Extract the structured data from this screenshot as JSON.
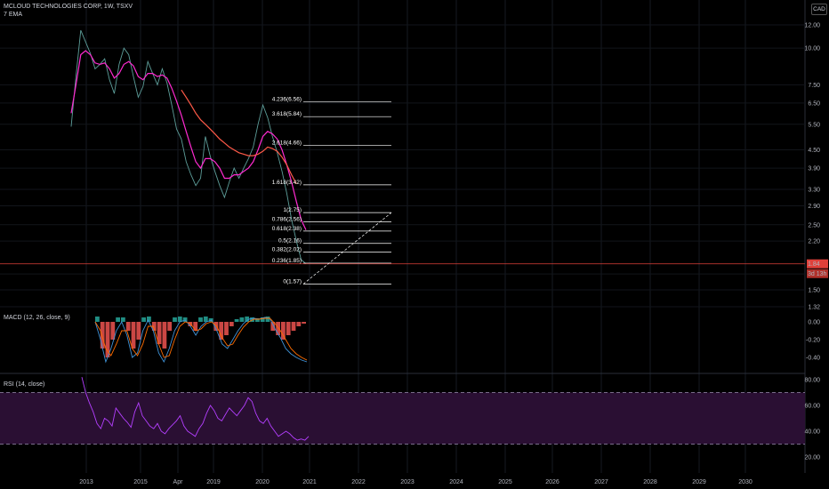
{
  "header": {
    "symbol_line": "MCLOUD TECHNOLOGIES CORP, 1W, TSXV",
    "indicator": "7 EMA",
    "currency": "CAD"
  },
  "macd_label": "MACD (12, 26, close, 9)",
  "rsi_label": "RSI (14, close)",
  "colors": {
    "background": "#000000",
    "price_line": "#5d9e9a",
    "ema": "#ff2ad1",
    "ma_slow": "#ff5a48",
    "fib": "#ffffff",
    "current_price": "#e0403a",
    "macd_hist_up": "#26a69a",
    "macd_hist_down": "#ef5350",
    "macd_line": "#3f92d6",
    "signal_line": "#ff6d00",
    "rsi_line": "#b43fff",
    "rsi_band": "#2a0f33"
  },
  "chart_data": [
    {
      "type": "line",
      "title": "MCLOUD TECHNOLOGIES CORP, 1W, TSXV",
      "x_ticks": [
        "2013",
        "2015",
        "Apr",
        "2019",
        "2020",
        "2021",
        "2022",
        "2023",
        "2024",
        "2025",
        "2026",
        "2027",
        "2028",
        "2029",
        "2030"
      ],
      "y_scale": "log",
      "y_ticks": [
        12.0,
        10.0,
        7.5,
        6.5,
        5.5,
        4.5,
        3.9,
        3.3,
        2.9,
        2.5,
        2.2,
        1.7,
        1.5,
        1.32
      ],
      "y_tick_labels": [
        "12.00",
        "10.00",
        "7.50",
        "6.50",
        "5.50",
        "4.50",
        "3.90",
        "3.30",
        "2.90",
        "2.50",
        "2.20",
        "1.70",
        "1.50",
        "1.32"
      ],
      "current_price": 1.84,
      "current_price_label": "1.84",
      "countdown_label": "3d 13h",
      "series": [
        {
          "values": [
            5.4,
            8.0,
            11.5,
            10.5,
            9.6,
            8.5,
            8.8,
            9.2,
            7.8,
            7.0,
            8.8,
            10.0,
            9.5,
            8.0,
            6.8,
            7.4,
            9.0,
            8.2,
            7.5,
            8.5,
            7.6,
            6.4,
            5.3,
            4.9,
            4.1,
            3.7,
            3.4,
            3.6,
            5.0,
            4.3,
            3.8,
            3.4,
            3.1,
            3.5,
            3.9,
            3.6,
            3.9,
            4.2,
            4.6,
            5.5,
            6.4,
            5.8,
            5.0,
            4.4,
            3.8,
            3.2,
            2.6,
            2.2,
            1.9,
            1.84
          ]
        },
        {
          "values": [
            6.0,
            7.5,
            9.5,
            9.8,
            9.5,
            8.9,
            8.8,
            8.9,
            8.5,
            7.9,
            8.2,
            8.8,
            9.0,
            8.7,
            8.0,
            7.8,
            8.2,
            8.2,
            8.0,
            8.1,
            7.9,
            7.3,
            6.6,
            5.9,
            5.2,
            4.6,
            4.1,
            3.9,
            4.2,
            4.2,
            4.1,
            3.9,
            3.6,
            3.6,
            3.7,
            3.7,
            3.8,
            3.9,
            4.1,
            4.5,
            5.0,
            5.2,
            5.1,
            4.9,
            4.5,
            4.0,
            3.5,
            3.0,
            2.6,
            2.4
          ]
        },
        {
          "values": [
            null,
            null,
            null,
            null,
            null,
            null,
            null,
            null,
            null,
            null,
            null,
            null,
            null,
            null,
            null,
            null,
            null,
            null,
            null,
            null,
            null,
            null,
            null,
            7.2,
            6.8,
            6.4,
            6.0,
            5.7,
            5.5,
            5.3,
            5.1,
            4.9,
            4.75,
            4.6,
            4.5,
            4.4,
            4.35,
            4.3,
            4.3,
            4.35,
            4.45,
            4.6,
            4.55,
            4.45,
            4.25,
            4.0,
            3.7,
            3.45,
            null,
            null
          ]
        }
      ],
      "fib_levels": [
        {
          "label": "4.236(6.56)",
          "value": 6.56
        },
        {
          "label": "3.618(5.84)",
          "value": 5.84
        },
        {
          "label": "2.618(4.66)",
          "value": 4.66
        },
        {
          "label": "1.618(3.42)",
          "value": 3.42
        },
        {
          "label": "1(2.75)",
          "value": 2.75
        },
        {
          "label": "0.786(2.56)",
          "value": 2.56
        },
        {
          "label": "0.618(2.38)",
          "value": 2.38
        },
        {
          "label": "0.5(2.16)",
          "value": 2.16
        },
        {
          "label": "0.382(2.02)",
          "value": 2.02
        },
        {
          "label": "0.236(1.85)",
          "value": 1.85
        },
        {
          "label": "0(1.57)",
          "value": 1.57
        }
      ]
    },
    {
      "type": "bar",
      "title": "MACD (12, 26, close, 9)",
      "y_ticks": [
        0.0,
        -0.2,
        -0.4
      ],
      "y_tick_labels": [
        "0.00",
        "-0.20",
        "-0.40"
      ],
      "series": [
        {
          "name": "histogram",
          "values": [
            0.06,
            -0.3,
            -0.4,
            -0.2,
            0.05,
            0.05,
            -0.1,
            -0.3,
            -0.2,
            0.05,
            0.06,
            -0.1,
            -0.25,
            -0.3,
            -0.1,
            0.05,
            0.06,
            0.05,
            -0.05,
            -0.1,
            0.05,
            0.06,
            0.04,
            -0.1,
            -0.2,
            -0.15,
            -0.05,
            0.03,
            0.05,
            0.06,
            0.05,
            0.04,
            0.05,
            0.06,
            -0.1,
            -0.15,
            -0.2,
            -0.15,
            -0.1,
            -0.05,
            -0.02
          ]
        },
        {
          "name": "macd",
          "values": [
            0.0,
            -0.2,
            -0.45,
            -0.3,
            -0.1,
            0.0,
            -0.15,
            -0.4,
            -0.35,
            -0.1,
            0.02,
            -0.1,
            -0.35,
            -0.45,
            -0.3,
            -0.1,
            0.0,
            0.02,
            -0.05,
            -0.15,
            -0.05,
            0.0,
            0.02,
            -0.1,
            -0.25,
            -0.3,
            -0.2,
            -0.1,
            -0.02,
            0.03,
            0.04,
            0.03,
            0.05,
            0.04,
            -0.08,
            -0.18,
            -0.3,
            -0.36,
            -0.4,
            -0.43,
            -0.45
          ]
        },
        {
          "name": "signal",
          "values": [
            0.0,
            -0.1,
            -0.3,
            -0.38,
            -0.25,
            -0.1,
            -0.1,
            -0.3,
            -0.38,
            -0.25,
            -0.05,
            -0.05,
            -0.25,
            -0.4,
            -0.38,
            -0.2,
            -0.05,
            0.0,
            -0.02,
            -0.1,
            -0.08,
            -0.02,
            0.0,
            -0.05,
            -0.18,
            -0.27,
            -0.25,
            -0.15,
            -0.06,
            0.0,
            0.03,
            0.03,
            0.04,
            0.04,
            -0.02,
            -0.1,
            -0.2,
            -0.3,
            -0.36,
            -0.4,
            -0.43
          ]
        }
      ]
    },
    {
      "type": "line",
      "title": "RSI (14, close)",
      "y_ticks": [
        80.0,
        60.0,
        40.0,
        20.0
      ],
      "y_tick_labels": [
        "80.00",
        "60.00",
        "40.00",
        "20.00"
      ],
      "band": [
        30,
        70
      ],
      "series": [
        {
          "values": [
            82,
            70,
            62,
            55,
            46,
            42,
            50,
            48,
            44,
            58,
            54,
            50,
            47,
            43,
            55,
            62,
            52,
            48,
            44,
            42,
            46,
            40,
            38,
            42,
            45,
            48,
            52,
            44,
            40,
            38,
            36,
            42,
            46,
            54,
            60,
            56,
            50,
            48,
            53,
            58,
            55,
            52,
            56,
            60,
            66,
            63,
            54,
            48,
            46,
            50,
            44,
            40,
            36,
            38,
            40,
            38,
            35,
            33,
            34,
            33,
            36
          ]
        }
      ]
    }
  ]
}
